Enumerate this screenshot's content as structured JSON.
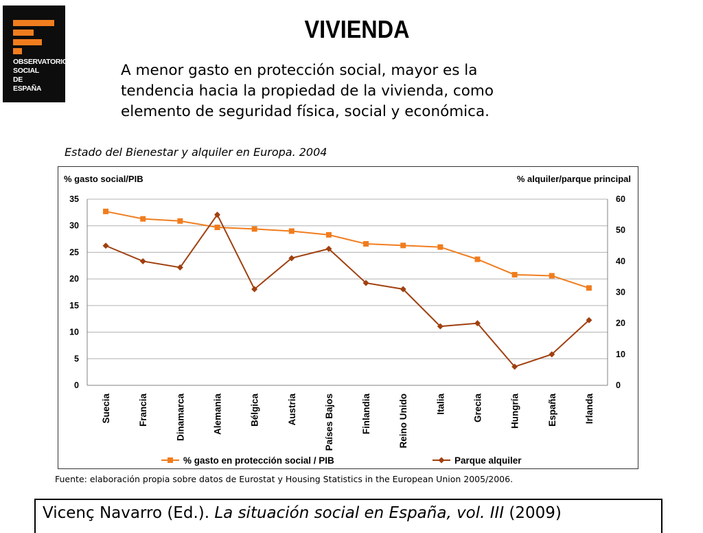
{
  "logo": {
    "lines": [
      "OBSERVATORIO",
      "SOCIAL",
      "DE",
      "ESPAÑA"
    ],
    "bar_color": "#f07d1e",
    "background": "#0d0d0d"
  },
  "header": {
    "title": "VIVIENDA",
    "subtitle_lines": [
      "A menor gasto en protección social, mayor es la",
      "tendencia hacia la propiedad de la vivienda, como",
      "elemento de seguridad física, social y económica."
    ]
  },
  "chart_data": {
    "type": "line",
    "title": "Estado del Bienestar y alquiler en Europa. 2004",
    "ylabel": "% gasto social/PIB",
    "y2label": "% alquiler/parque principal",
    "ylim": [
      0,
      35
    ],
    "y2lim": [
      0,
      60
    ],
    "yticks": [
      0,
      5,
      10,
      15,
      20,
      25,
      30,
      35
    ],
    "y2ticks": [
      0,
      10,
      20,
      30,
      40,
      50,
      60
    ],
    "grid": true,
    "legend_position": "bottom",
    "categories": [
      "Suecia",
      "Francia",
      "Dinamarca",
      "Alemania",
      "Bélgica",
      "Austria",
      "Países Bajos",
      "Finlandia",
      "Reino Unido",
      "Italia",
      "Grecia",
      "Hungría",
      "España",
      "Irlanda"
    ],
    "series": [
      {
        "name": "% gasto en protección social / PIB",
        "axis": "left",
        "color": "#f07d1e",
        "marker": "square",
        "values": [
          32.7,
          31.3,
          30.9,
          29.7,
          29.4,
          29.0,
          28.3,
          26.6,
          26.3,
          26.0,
          23.7,
          20.8,
          20.6,
          18.3
        ]
      },
      {
        "name": "Parque alquiler",
        "axis": "right",
        "color": "#a0400f",
        "marker": "diamond",
        "values": [
          45,
          40,
          38,
          55,
          31,
          41,
          44,
          33,
          31,
          19,
          20,
          6,
          10,
          21
        ]
      }
    ]
  },
  "source": "Fuente: elaboración propia sobre datos de Eurostat y Housing Statistics in the European Union 2005/2006.",
  "citation": {
    "author": "Vicenç Navarro (Ed.). ",
    "work": "La situación social en España, vol. III",
    "year": " (2009)"
  }
}
